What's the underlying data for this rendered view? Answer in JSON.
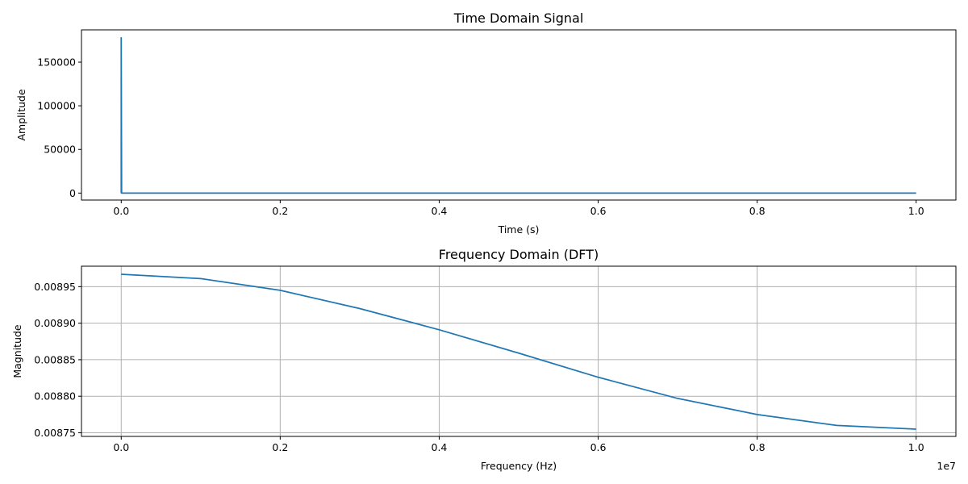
{
  "chart_data": [
    {
      "type": "line",
      "title": "Time Domain Signal",
      "xlabel": "Time (s)",
      "ylabel": "Amplitude",
      "xlim": [
        -0.05,
        1.05
      ],
      "ylim": [
        -8000,
        187000
      ],
      "xticks": [
        0.0,
        0.2,
        0.4,
        0.6,
        0.8,
        1.0
      ],
      "xtick_labels": [
        "0.0",
        "0.2",
        "0.4",
        "0.6",
        "0.8",
        "1.0"
      ],
      "yticks": [
        0,
        50000,
        100000,
        150000
      ],
      "ytick_labels": [
        "0",
        "50000",
        "100000",
        "150000"
      ],
      "grid": false,
      "color": "#1f77b4",
      "series": [
        {
          "x": [
            0.0,
            0.0,
            0.0005,
            1.0
          ],
          "y": [
            0,
            178000,
            0,
            0
          ]
        }
      ]
    },
    {
      "type": "line",
      "title": "Frequency Domain (DFT)",
      "xlabel": "Frequency (Hz)",
      "ylabel": "Magnitude",
      "x_offset_label": "1e7",
      "xlim": [
        -500000,
        10500000
      ],
      "ylim": [
        0.008745,
        0.008978
      ],
      "xticks": [
        0,
        2000000,
        4000000,
        6000000,
        8000000,
        10000000
      ],
      "xtick_labels": [
        "0.0",
        "0.2",
        "0.4",
        "0.6",
        "0.8",
        "1.0"
      ],
      "yticks": [
        0.00875,
        0.0088,
        0.00885,
        0.0089,
        0.00895
      ],
      "ytick_labels": [
        "0.00875",
        "0.00880",
        "0.00885",
        "0.00890",
        "0.00895"
      ],
      "grid": true,
      "color": "#1f77b4",
      "series": [
        {
          "x": [
            0,
            1000000,
            2000000,
            3000000,
            4000000,
            5000000,
            6000000,
            7000000,
            8000000,
            9000000,
            10000000
          ],
          "y": [
            0.008967,
            0.008961,
            0.008945,
            0.00892,
            0.008891,
            0.008859,
            0.008826,
            0.008797,
            0.008775,
            0.00876,
            0.008755
          ]
        }
      ]
    }
  ]
}
